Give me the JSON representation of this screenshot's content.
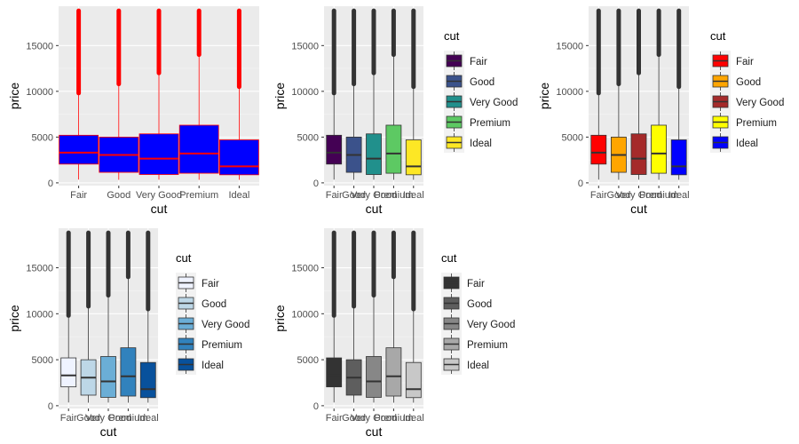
{
  "chart_data": [
    {
      "type": "boxplot",
      "panel": "top-left",
      "xlabel": "cut",
      "ylabel": "price",
      "categories": [
        "Fair",
        "Good",
        "Very Good",
        "Premium",
        "Ideal"
      ],
      "yticks": [
        0,
        5000,
        10000,
        15000
      ],
      "ylim": [
        -300,
        19300
      ],
      "whisker_max": 18800,
      "boxes": [
        {
          "q1": 2050,
          "median": 3300,
          "q3": 5200,
          "lower": 350,
          "outlier_from": 9800
        },
        {
          "q1": 1150,
          "median": 3050,
          "q3": 5000,
          "lower": 330,
          "outlier_from": 10800
        },
        {
          "q1": 910,
          "median": 2650,
          "q3": 5350,
          "lower": 340,
          "outlier_from": 12000
        },
        {
          "q1": 1050,
          "median": 3200,
          "q3": 6300,
          "lower": 330,
          "outlier_from": 14000
        },
        {
          "q1": 880,
          "median": 1800,
          "q3": 4700,
          "lower": 330,
          "outlier_from": 10500
        }
      ],
      "box_fill": [
        "#0000ff",
        "#0000ff",
        "#0000ff",
        "#0000ff",
        "#0000ff"
      ],
      "line_color": "#ff0000",
      "legend": null
    },
    {
      "type": "boxplot",
      "panel": "top-middle",
      "xlabel": "cut",
      "ylabel": "price",
      "categories": [
        "Fair",
        "Good",
        "Very Good",
        "Premium",
        "Ideal"
      ],
      "yticks": [
        0,
        5000,
        10000,
        15000
      ],
      "ylim": [
        -300,
        19300
      ],
      "whisker_max": 18800,
      "boxes": [
        {
          "q1": 2050,
          "median": 3300,
          "q3": 5200,
          "lower": 350,
          "outlier_from": 9800
        },
        {
          "q1": 1150,
          "median": 3050,
          "q3": 5000,
          "lower": 330,
          "outlier_from": 10800
        },
        {
          "q1": 910,
          "median": 2650,
          "q3": 5350,
          "lower": 340,
          "outlier_from": 12000
        },
        {
          "q1": 1050,
          "median": 3200,
          "q3": 6300,
          "lower": 330,
          "outlier_from": 14000
        },
        {
          "q1": 880,
          "median": 1800,
          "q3": 4700,
          "lower": 330,
          "outlier_from": 10500
        }
      ],
      "box_fill": [
        "#440154",
        "#3b528b",
        "#21908c",
        "#5dc963",
        "#fde725"
      ],
      "line_color": "#333333",
      "legend": {
        "title": "cut",
        "labels": [
          "Fair",
          "Good",
          "Very Good",
          "Premium",
          "Ideal"
        ],
        "placement": "right"
      }
    },
    {
      "type": "boxplot",
      "panel": "top-right",
      "xlabel": "cut",
      "ylabel": "price",
      "categories": [
        "Fair",
        "Good",
        "Very Good",
        "Premium",
        "Ideal"
      ],
      "yticks": [
        0,
        5000,
        10000,
        15000
      ],
      "ylim": [
        -300,
        19300
      ],
      "whisker_max": 18800,
      "boxes": [
        {
          "q1": 2050,
          "median": 3300,
          "q3": 5200,
          "lower": 350,
          "outlier_from": 9800
        },
        {
          "q1": 1150,
          "median": 3050,
          "q3": 5000,
          "lower": 330,
          "outlier_from": 10800
        },
        {
          "q1": 910,
          "median": 2650,
          "q3": 5350,
          "lower": 340,
          "outlier_from": 12000
        },
        {
          "q1": 1050,
          "median": 3200,
          "q3": 6300,
          "lower": 330,
          "outlier_from": 14000
        },
        {
          "q1": 880,
          "median": 1800,
          "q3": 4700,
          "lower": 330,
          "outlier_from": 10500
        }
      ],
      "box_fill": [
        "#ff0000",
        "#ffa500",
        "#a52a2a",
        "#ffff00",
        "#0000ff"
      ],
      "line_color": "#333333",
      "legend": {
        "title": "cut",
        "labels": [
          "Fair",
          "Good",
          "Very Good",
          "Premium",
          "Ideal"
        ],
        "placement": "right"
      }
    },
    {
      "type": "boxplot",
      "panel": "bottom-left",
      "xlabel": "cut",
      "ylabel": "price",
      "categories": [
        "Fair",
        "Good",
        "Very Good",
        "Premium",
        "Ideal"
      ],
      "yticks": [
        0,
        5000,
        10000,
        15000
      ],
      "ylim": [
        -300,
        19300
      ],
      "whisker_max": 18800,
      "boxes": [
        {
          "q1": 2050,
          "median": 3300,
          "q3": 5200,
          "lower": 350,
          "outlier_from": 9800
        },
        {
          "q1": 1150,
          "median": 3050,
          "q3": 5000,
          "lower": 330,
          "outlier_from": 10800
        },
        {
          "q1": 910,
          "median": 2650,
          "q3": 5350,
          "lower": 340,
          "outlier_from": 12000
        },
        {
          "q1": 1050,
          "median": 3200,
          "q3": 6300,
          "lower": 330,
          "outlier_from": 14000
        },
        {
          "q1": 880,
          "median": 1800,
          "q3": 4700,
          "lower": 330,
          "outlier_from": 10500
        }
      ],
      "box_fill": [
        "#eff3ff",
        "#bdd7e7",
        "#6baed6",
        "#3182bd",
        "#08519c"
      ],
      "line_color": "#333333",
      "legend": {
        "title": "cut",
        "labels": [
          "Fair",
          "Good",
          "Very Good",
          "Premium",
          "Ideal"
        ],
        "placement": "right"
      }
    },
    {
      "type": "boxplot",
      "panel": "bottom-middle",
      "xlabel": "cut",
      "ylabel": "price",
      "categories": [
        "Fair",
        "Good",
        "Very Good",
        "Premium",
        "Ideal"
      ],
      "yticks": [
        0,
        5000,
        10000,
        15000
      ],
      "ylim": [
        -300,
        19300
      ],
      "whisker_max": 18800,
      "boxes": [
        {
          "q1": 2050,
          "median": 3300,
          "q3": 5200,
          "lower": 350,
          "outlier_from": 9800
        },
        {
          "q1": 1150,
          "median": 3050,
          "q3": 5000,
          "lower": 330,
          "outlier_from": 10800
        },
        {
          "q1": 910,
          "median": 2650,
          "q3": 5350,
          "lower": 340,
          "outlier_from": 12000
        },
        {
          "q1": 1050,
          "median": 3200,
          "q3": 6300,
          "lower": 330,
          "outlier_from": 14000
        },
        {
          "q1": 880,
          "median": 1800,
          "q3": 4700,
          "lower": 330,
          "outlier_from": 10500
        }
      ],
      "box_fill": [
        "#333333",
        "#5e5e5e",
        "#878787",
        "#a8a8a8",
        "#c8c8c8"
      ],
      "line_color": "#333333",
      "legend": {
        "title": "cut",
        "labels": [
          "Fair",
          "Good",
          "Very Good",
          "Premium",
          "Ideal"
        ],
        "placement": "right"
      }
    }
  ]
}
